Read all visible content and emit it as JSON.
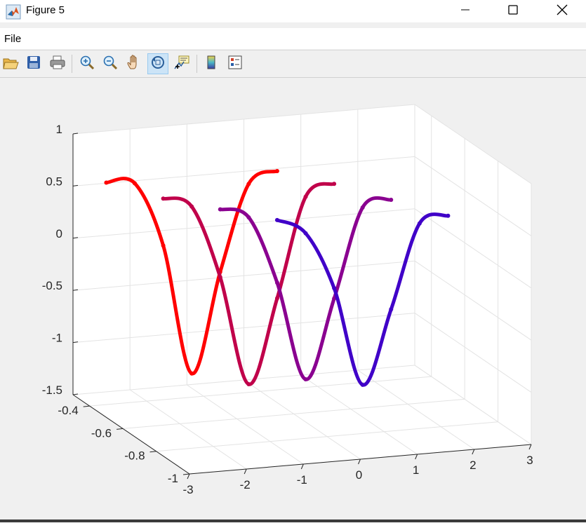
{
  "window": {
    "title": "Figure 5",
    "app_icon": "matlab-icon",
    "controls": [
      "minimize-icon",
      "maximize-icon",
      "close-icon"
    ]
  },
  "menu": {
    "file_label": "File"
  },
  "toolbar": {
    "buttons": [
      "open-icon",
      "save-icon",
      "print-icon",
      "zoom-in-icon",
      "zoom-out-icon",
      "pan-icon",
      "rotate-3d-icon",
      "data-cursor-icon",
      "colorbar-icon",
      "legend-icon"
    ],
    "active": "rotate-3d-icon"
  },
  "chart_data": {
    "type": "line",
    "projection": "3d",
    "title": "",
    "xlabel": "",
    "ylabel": "",
    "zlabel": "",
    "xlim": [
      -3,
      3
    ],
    "ylim": [
      -1,
      -0.3
    ],
    "zlim": [
      -1.5,
      1
    ],
    "grid": true,
    "x_ticks": [
      "-3",
      "-2",
      "-1",
      "0",
      "1",
      "2",
      "3"
    ],
    "y_ticks": [
      "-1",
      "-0.8",
      "-0.6",
      "-0.4"
    ],
    "z_ticks": [
      "1",
      "0.5",
      "0",
      "-0.5",
      "-1",
      "-1.5"
    ],
    "series": [
      {
        "color": "#ff0000",
        "x": [
          -3,
          -2.5,
          -2,
          -1.5,
          -1,
          -0.5,
          0
        ],
        "z": [
          0.75,
          0.72,
          0.1,
          -1.15,
          -0.2,
          0.62,
          0.72
        ]
      },
      {
        "color": "#c0004a",
        "x": [
          -2,
          -1.5,
          -1,
          -0.5,
          0,
          0.5,
          1
        ],
        "z": [
          0.55,
          0.45,
          -0.25,
          -1.3,
          -0.5,
          0.45,
          0.55
        ]
      },
      {
        "color": "#8a0090",
        "x": [
          -1,
          -0.5,
          0,
          0.5,
          1,
          1.5,
          2
        ],
        "z": [
          0.4,
          0.3,
          -0.35,
          -1.3,
          -0.55,
          0.3,
          0.35
        ]
      },
      {
        "color": "#4000c8",
        "x": [
          0,
          0.5,
          1,
          1.5,
          2,
          2.5,
          3
        ],
        "z": [
          0.25,
          0.1,
          -0.45,
          -1.4,
          -0.7,
          0.1,
          0.15
        ]
      }
    ]
  }
}
